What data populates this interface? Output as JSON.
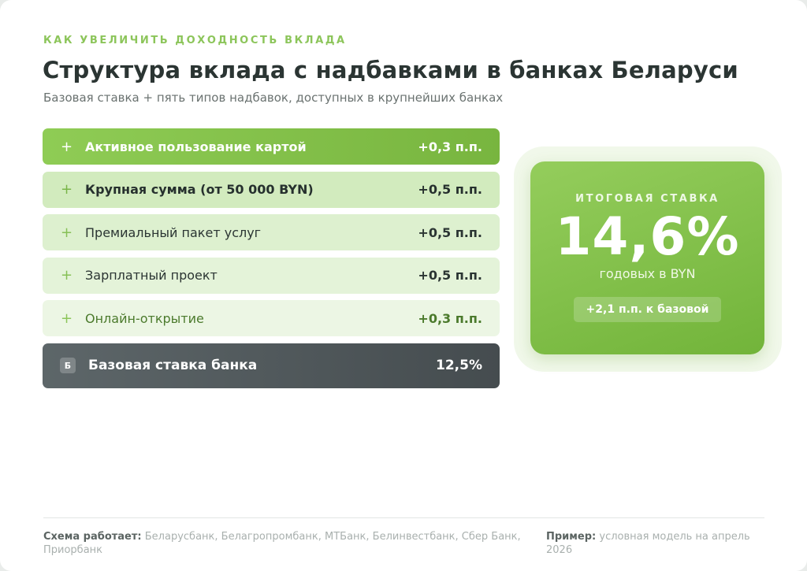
{
  "eyebrow": "КАК УВЕЛИЧИТЬ ДОХОДНОСТЬ ВКЛАДА",
  "title": "Структура вклада с надбавками в банках Беларуси",
  "subtitle": "Базовая ставка + пять типов надбавок, доступных в крупнейших банках",
  "tiers": [
    {
      "plus": "+",
      "label": "Активное пользование картой",
      "value": "+0,3 п.п."
    },
    {
      "plus": "+",
      "label": "Крупная сумма (от 50 000 BYN)",
      "value": "+0,5 п.п."
    },
    {
      "plus": "+",
      "label": "Премиальный пакет услуг",
      "value": "+0,5 п.п."
    },
    {
      "plus": "+",
      "label": "Зарплатный проект",
      "value": "+0,5 п.п."
    },
    {
      "plus": "+",
      "label": "Онлайн-открытие",
      "value": "+0,3 п.п."
    }
  ],
  "base": {
    "badge": "Б",
    "label": "Базовая ставка банка",
    "value": "12,5%"
  },
  "result": {
    "label": "ИТОГОВАЯ СТАВКА",
    "value": "14,6%",
    "unit": "годовых в BYN",
    "delta": "+2,1 п.п. к базовой"
  },
  "footer": {
    "left_label": "Схема работает:",
    "left_text": "Беларусбанк, Белагропромбанк, МТБанк, Белинвестбанк, Сбер Банк, Приорбанк",
    "right_label": "Пример:",
    "right_text": "условная модель на апрель 2026"
  },
  "colors": {
    "accent": "#8cc55a",
    "accent_dark": "#72b43a",
    "base_bar": "#4f575a",
    "text": "#2b3533"
  }
}
